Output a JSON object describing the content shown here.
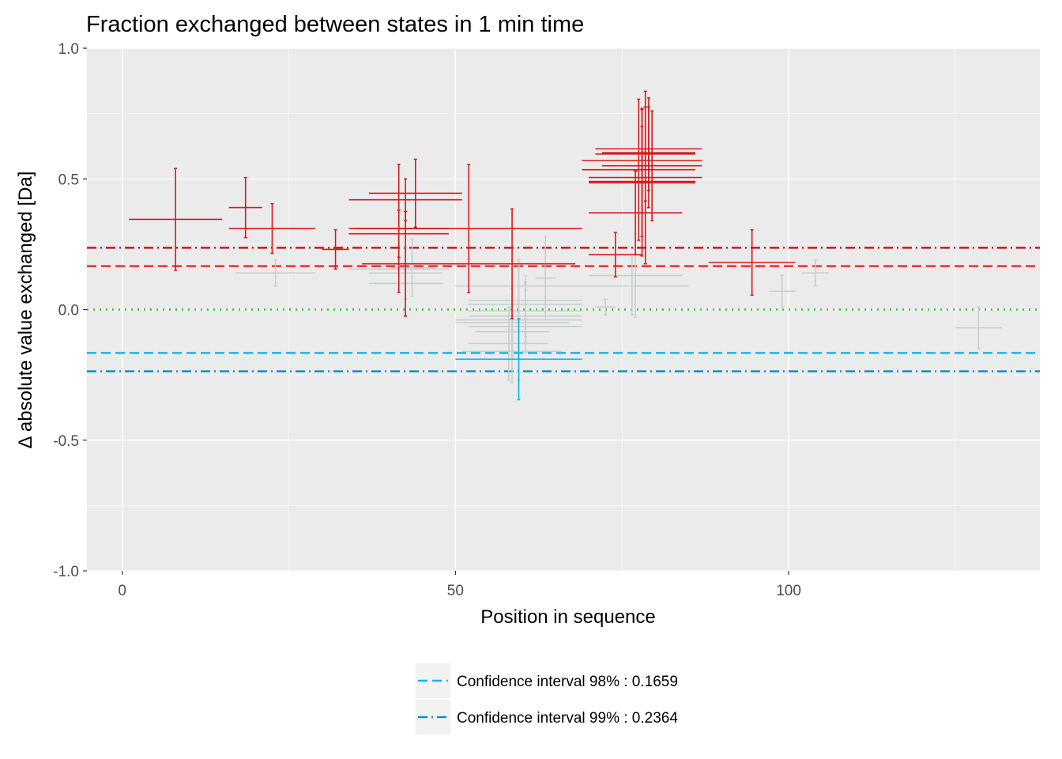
{
  "chart_data": {
    "type": "scatter",
    "title": "Fraction exchanged between states in 1 min time",
    "xlabel": "Position in sequence",
    "ylabel": "Δ absolute value exchanged [Da]",
    "xlim": [
      -5.3,
      137.7
    ],
    "ylim": [
      -1.0,
      1.0
    ],
    "xticks": [
      0,
      50,
      100
    ],
    "xtick_labels": [
      "0",
      "50",
      "100"
    ],
    "yticks": [
      -1.0,
      -0.5,
      0.0,
      0.5,
      1.0
    ],
    "ytick_labels": [
      "-1.0",
      "-0.5",
      "0.0",
      "0.5",
      "1.0"
    ],
    "grid": true,
    "colors": {
      "significant_positive": "#d7191c",
      "significant_negative": "#00b4f0",
      "not_significant": "#c8cfcf",
      "ci98_positive": "#e8322c",
      "ci99_positive": "#c8181c",
      "ci98_negative": "#1ab4e6",
      "ci99_negative": "#0a8fc4",
      "zero_line": "#22cc22",
      "panel": "#ebebeb",
      "grid": "#ffffff"
    },
    "reference_lines": [
      {
        "y": 0.2364,
        "style": "dotdash",
        "color": "#c8181c"
      },
      {
        "y": 0.1659,
        "style": "dashed",
        "color": "#e8322c"
      },
      {
        "y": 0.0,
        "style": "dotted",
        "color": "#22cc22"
      },
      {
        "y": -0.1659,
        "style": "dashed",
        "color": "#1ab4e6"
      },
      {
        "y": -0.2364,
        "style": "dotdash",
        "color": "#0a8fc4"
      }
    ],
    "legend": {
      "position": "bottom",
      "entries": [
        {
          "label": "Confidence interval 98% : 0.1659",
          "style": "dashed",
          "color": "#1ab4e6"
        },
        {
          "label": "Confidence interval 99% : 0.2364",
          "style": "dotdash",
          "color": "#0a8fc4"
        }
      ]
    },
    "points": [
      {
        "start": 1,
        "end": 15,
        "y": 0.345,
        "err": 0.195,
        "group": "pos"
      },
      {
        "start": 16,
        "end": 21,
        "y": 0.39,
        "err": 0.115,
        "group": "pos"
      },
      {
        "start": 16,
        "end": 29,
        "y": 0.31,
        "err": 0.095,
        "group": "pos"
      },
      {
        "start": 17,
        "end": 29,
        "y": 0.14,
        "err": 0.05,
        "group": "ns"
      },
      {
        "start": 30,
        "end": 34,
        "y": 0.23,
        "err": 0.075,
        "group": "pos"
      },
      {
        "start": 34,
        "end": 51,
        "y": 0.42,
        "err": 0.08,
        "group": "pos"
      },
      {
        "start": 37,
        "end": 51,
        "y": 0.445,
        "err": 0.13,
        "group": "pos"
      },
      {
        "start": 34,
        "end": 49,
        "y": 0.31,
        "err": 0.245,
        "group": "pos"
      },
      {
        "start": 34,
        "end": 49,
        "y": 0.29,
        "err": 0.09,
        "group": "pos"
      },
      {
        "start": 34,
        "end": 49,
        "y": 0.155,
        "err": 0.09,
        "group": "ns"
      },
      {
        "start": 36,
        "end": 49,
        "y": 0.175,
        "err": 0.2,
        "group": "pos"
      },
      {
        "start": 37,
        "end": 48,
        "y": 0.14,
        "err": 0.1,
        "group": "ns"
      },
      {
        "start": 37,
        "end": 48,
        "y": 0.1,
        "err": 0.13,
        "group": "ns"
      },
      {
        "start": 40,
        "end": 47,
        "y": 0.16,
        "err": 0.11,
        "group": "ns"
      },
      {
        "start": 35,
        "end": 69,
        "y": 0.31,
        "err": 0.245,
        "group": "pos"
      },
      {
        "start": 49,
        "end": 68,
        "y": 0.175,
        "err": 0.21,
        "group": "pos"
      },
      {
        "start": 50,
        "end": 69,
        "y": 0.09,
        "err": 0.1,
        "group": "ns"
      },
      {
        "start": 50,
        "end": 69,
        "y": -0.19,
        "err": 0.155,
        "group": "neg"
      },
      {
        "start": 52,
        "end": 69,
        "y": 0.035,
        "err": 0.07,
        "group": "ns"
      },
      {
        "start": 52,
        "end": 69,
        "y": 0.02,
        "err": 0.11,
        "group": "ns"
      },
      {
        "start": 52,
        "end": 69,
        "y": -0.005,
        "err": 0.1,
        "group": "ns"
      },
      {
        "start": 52,
        "end": 69,
        "y": -0.025,
        "err": 0.1,
        "group": "ns"
      },
      {
        "start": 50,
        "end": 67,
        "y": -0.05,
        "err": 0.13,
        "group": "ns"
      },
      {
        "start": 52,
        "end": 69,
        "y": -0.065,
        "err": 0.1,
        "group": "ns"
      },
      {
        "start": 53,
        "end": 64,
        "y": -0.085,
        "err": 0.09,
        "group": "ns"
      },
      {
        "start": 52,
        "end": 64,
        "y": -0.13,
        "err": 0.14,
        "group": "ns"
      },
      {
        "start": 51,
        "end": 66,
        "y": -0.16,
        "err": 0.12,
        "group": "ns"
      },
      {
        "start": 50,
        "end": 69,
        "y": -0.04,
        "err": 0.23,
        "group": "ns"
      },
      {
        "start": 62,
        "end": 65,
        "y": 0.12,
        "err": 0.16,
        "group": "ns"
      },
      {
        "start": 71,
        "end": 74,
        "y": 0.01,
        "err": 0.03,
        "group": "ns"
      },
      {
        "start": 68,
        "end": 85,
        "y": 0.09,
        "err": 0.11,
        "group": "ns"
      },
      {
        "start": 70,
        "end": 84,
        "y": 0.13,
        "err": 0.16,
        "group": "ns"
      },
      {
        "start": 70,
        "end": 78,
        "y": 0.21,
        "err": 0.085,
        "group": "pos"
      },
      {
        "start": 70,
        "end": 84,
        "y": 0.37,
        "err": 0.16,
        "group": "pos"
      },
      {
        "start": 70,
        "end": 86,
        "y": 0.485,
        "err": 0.28,
        "group": "pos"
      },
      {
        "start": 70,
        "end": 86,
        "y": 0.49,
        "err": 0.21,
        "group": "pos"
      },
      {
        "start": 70,
        "end": 87,
        "y": 0.505,
        "err": 0.33,
        "group": "pos"
      },
      {
        "start": 69,
        "end": 86,
        "y": 0.535,
        "err": 0.27,
        "group": "pos"
      },
      {
        "start": 72,
        "end": 87,
        "y": 0.55,
        "err": 0.21,
        "group": "pos"
      },
      {
        "start": 69,
        "end": 87,
        "y": 0.57,
        "err": 0.2,
        "group": "pos"
      },
      {
        "start": 71,
        "end": 86,
        "y": 0.595,
        "err": 0.18,
        "group": "pos"
      },
      {
        "start": 72,
        "end": 86,
        "y": 0.6,
        "err": 0.21,
        "group": "pos"
      },
      {
        "start": 71,
        "end": 87,
        "y": 0.615,
        "err": 0.16,
        "group": "pos"
      },
      {
        "start": 88,
        "end": 101,
        "y": 0.18,
        "err": 0.125,
        "group": "pos"
      },
      {
        "start": 97,
        "end": 101,
        "y": 0.07,
        "err": 0.06,
        "group": "ns"
      },
      {
        "start": 102,
        "end": 106,
        "y": 0.14,
        "err": 0.05,
        "group": "ns"
      },
      {
        "start": 125,
        "end": 132,
        "y": -0.07,
        "err": 0.08,
        "group": "ns"
      }
    ]
  }
}
